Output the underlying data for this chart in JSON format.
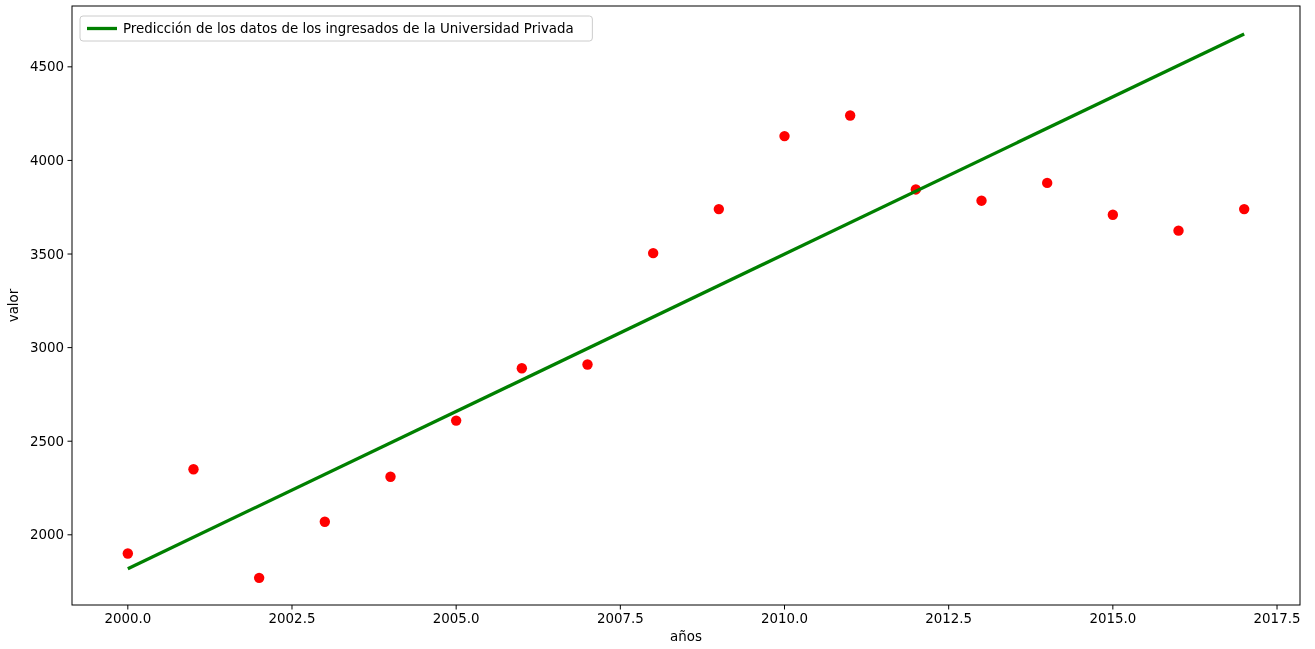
{
  "chart_data": {
    "type": "scatter",
    "xlabel": "años",
    "ylabel": "valor",
    "legend": "top left",
    "grid": false,
    "xlim": [
      1999.15,
      2017.85
    ],
    "ylim": [
      1625,
      4825
    ],
    "xticks": [
      {
        "value": 2000,
        "label": "2000.0"
      },
      {
        "value": 2002.5,
        "label": "2002.5"
      },
      {
        "value": 2005,
        "label": "2005.0"
      },
      {
        "value": 2007.5,
        "label": "2007.5"
      },
      {
        "value": 2010,
        "label": "2010.0"
      },
      {
        "value": 2012.5,
        "label": "2012.5"
      },
      {
        "value": 2015,
        "label": "2015.0"
      },
      {
        "value": 2017.5,
        "label": "2017.5"
      }
    ],
    "yticks": [
      2000,
      2500,
      3000,
      3500,
      4000,
      4500
    ],
    "series": [
      {
        "color": "#ff0000",
        "marker": "circle",
        "x": [
          2000,
          2001,
          2002,
          2003,
          2004,
          2005,
          2006,
          2007,
          2008,
          2009,
          2010,
          2011,
          2012,
          2013,
          2014,
          2015,
          2016,
          2017
        ],
        "values": [
          1900,
          2350,
          1770,
          2070,
          2310,
          2610,
          2890,
          2910,
          3505,
          3740,
          4130,
          4240,
          3845,
          3785,
          3880,
          3710,
          3625,
          3740
        ]
      },
      {
        "type": "line",
        "name": "Predicción de los datos de los ingresados de la Universidad Privada",
        "color": "#008000",
        "x": [
          2000,
          2017
        ],
        "values": [
          1819,
          4676
        ]
      }
    ]
  }
}
